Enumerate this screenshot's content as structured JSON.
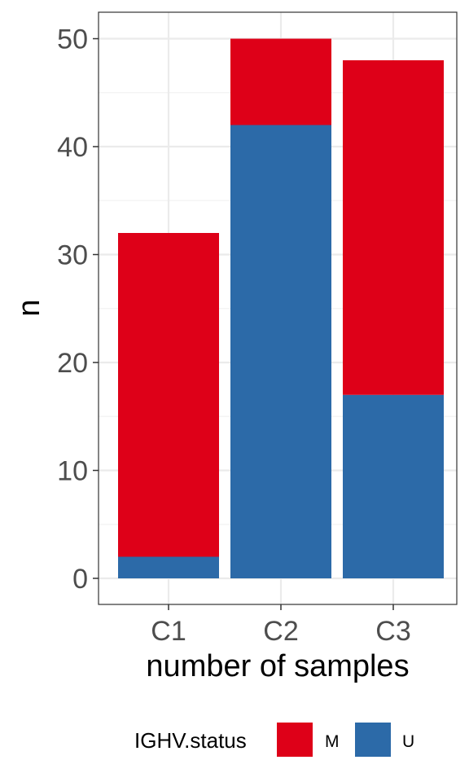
{
  "chart_data": {
    "type": "bar",
    "stacked": true,
    "categories": [
      "C1",
      "C2",
      "C3"
    ],
    "series": [
      {
        "name": "U",
        "values": [
          2,
          42,
          17
        ],
        "color": "#2c6aa8"
      },
      {
        "name": "M",
        "values": [
          30,
          8,
          31
        ],
        "color": "#de0018"
      }
    ],
    "xlabel": "number of samples",
    "ylabel": "n",
    "ylim": [
      0,
      52.5
    ],
    "yticks": [
      0,
      10,
      20,
      30,
      40,
      50
    ],
    "grid": true,
    "legend": {
      "title": "IGHV.status",
      "position": "bottom",
      "entries": [
        {
          "label": "M",
          "color": "#de0018"
        },
        {
          "label": "U",
          "color": "#2c6aa8"
        }
      ]
    }
  }
}
